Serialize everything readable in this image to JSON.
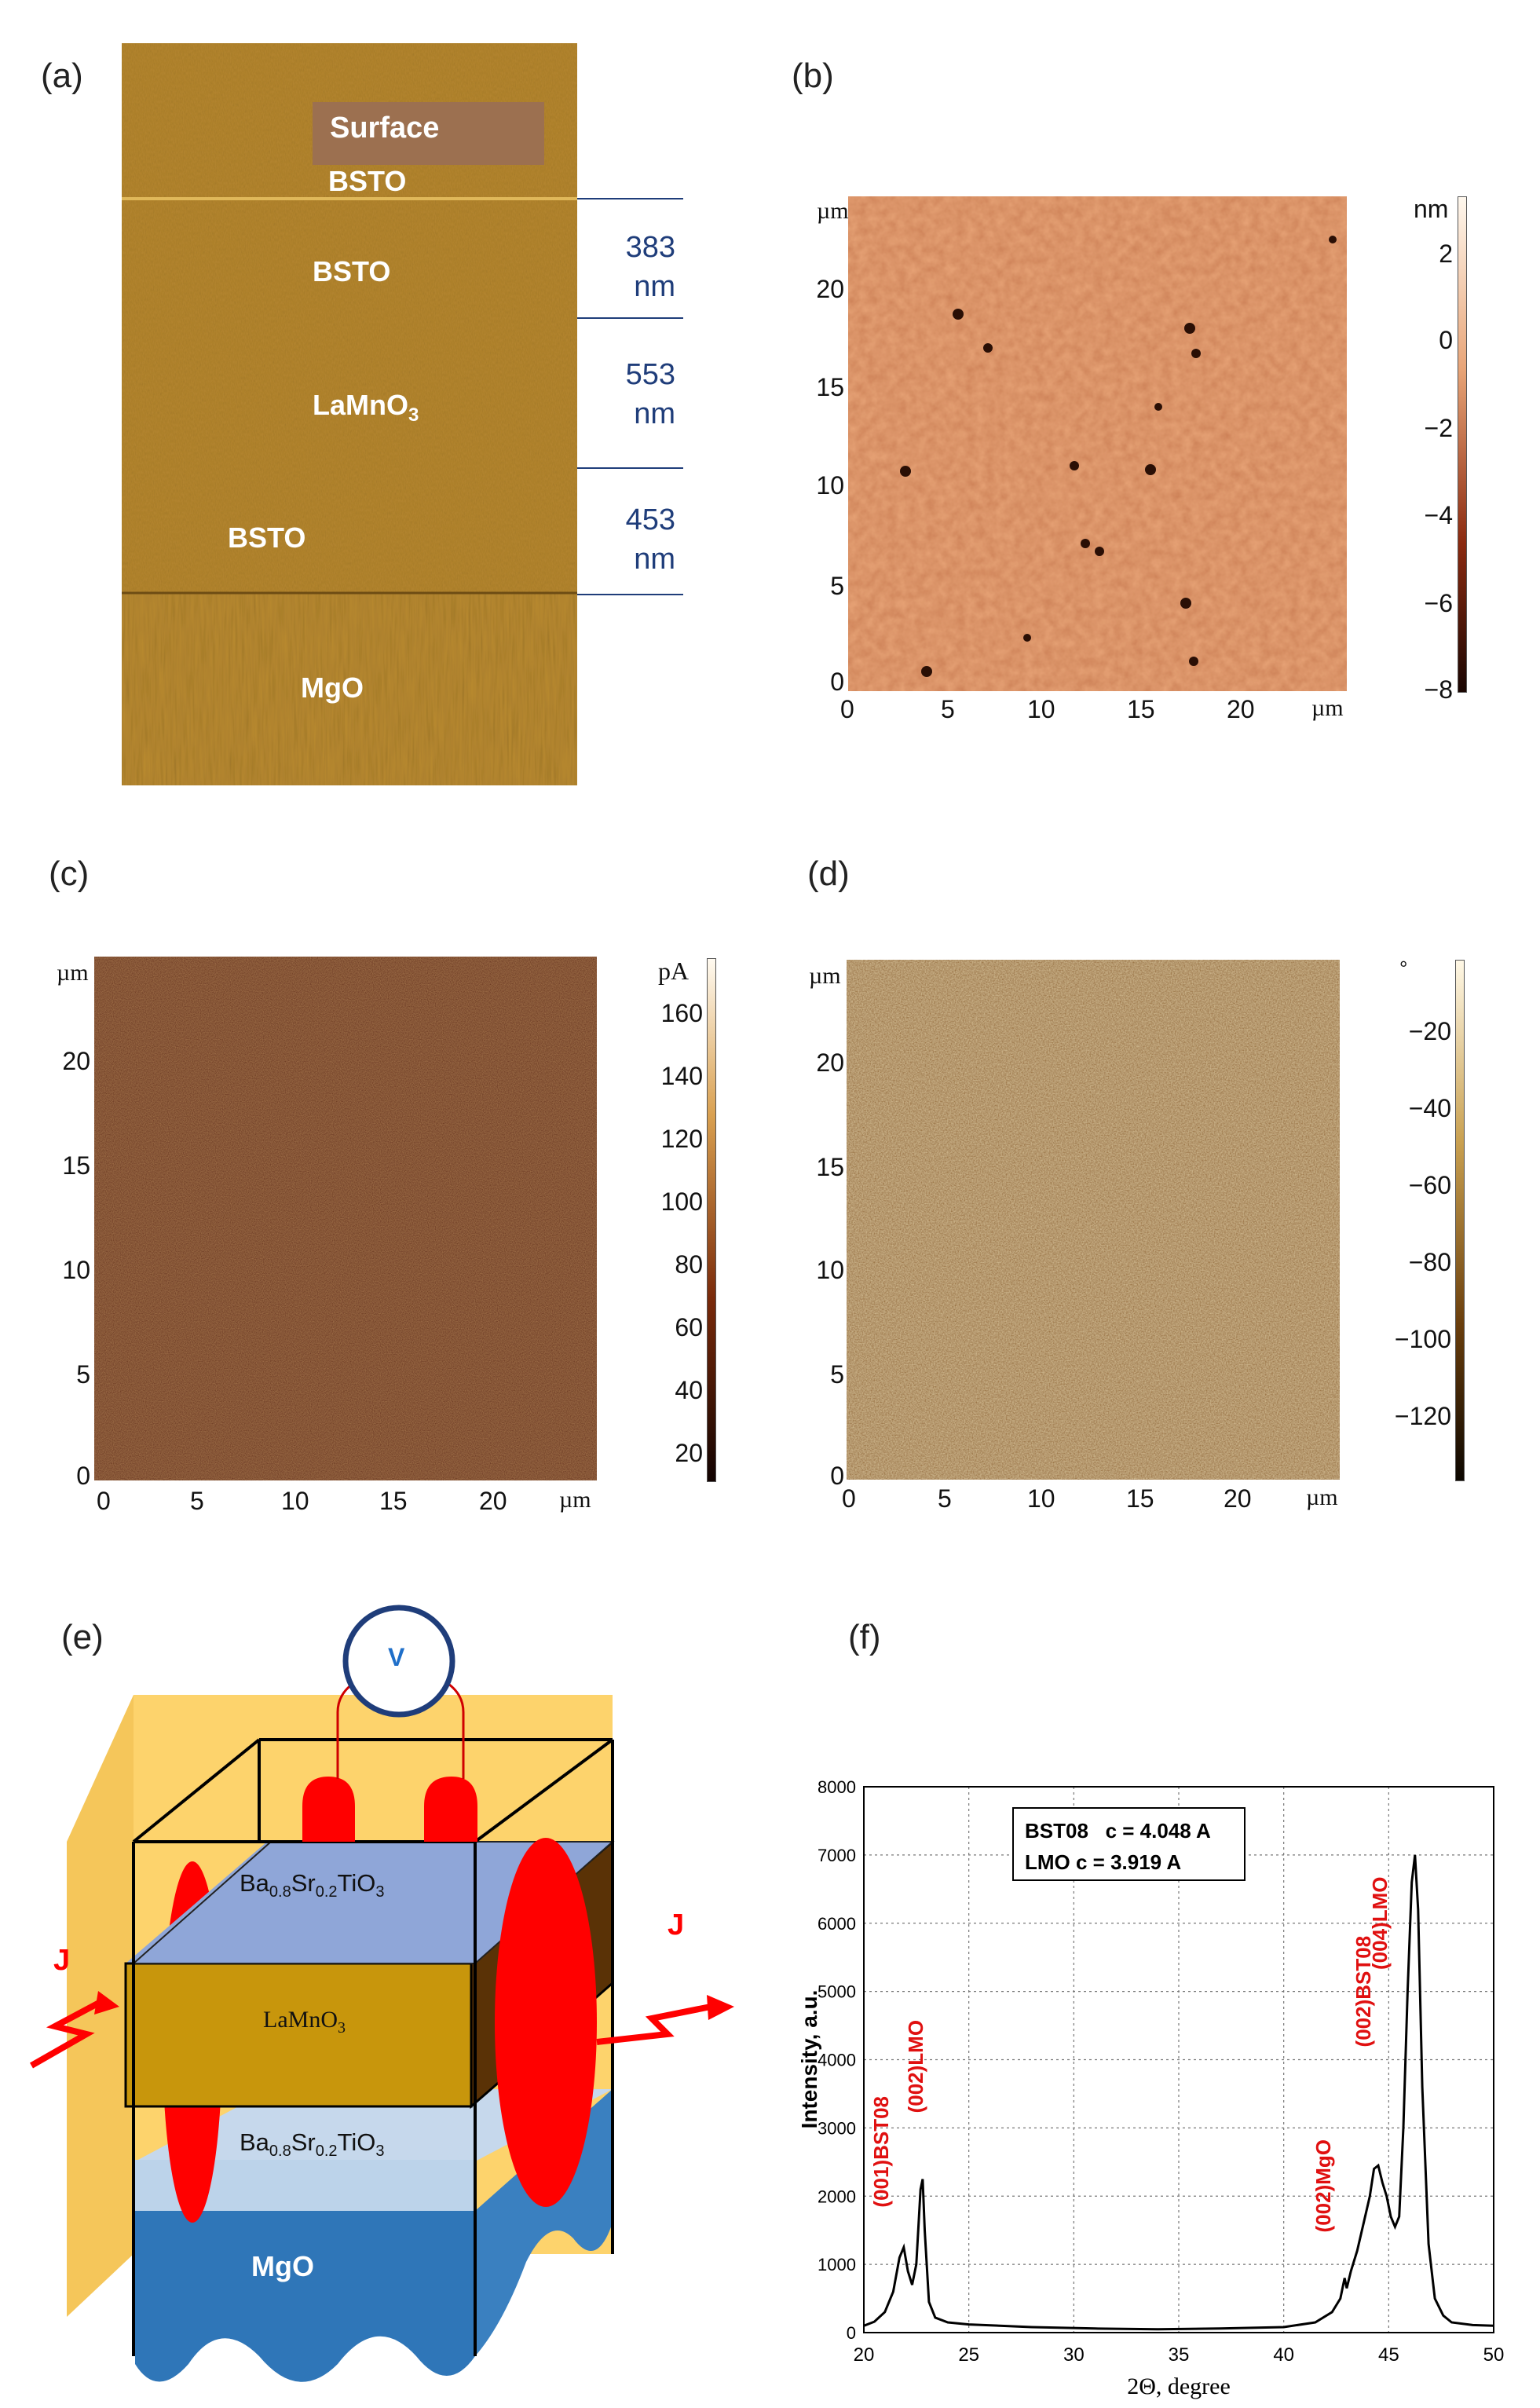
{
  "panels": {
    "a": {
      "letter": "(a)",
      "layers": {
        "surface": "Surface",
        "bsto_top": "BSTO",
        "bsto_mid": "BSTO",
        "lamno": "LaMnO",
        "lamno_sub": "3",
        "bsto_bottom": "BSTO",
        "mgo": "MgO"
      },
      "thickness": [
        {
          "value": "383",
          "unit": "nm"
        },
        {
          "value": "553",
          "unit": "nm"
        },
        {
          "value": "453",
          "unit": "nm"
        }
      ]
    },
    "b": {
      "letter": "(b)",
      "axis_unit": "µm",
      "y_ticks": [
        "20",
        "15",
        "10",
        "5",
        "0"
      ],
      "x_ticks": [
        "0",
        "5",
        "10",
        "15",
        "20"
      ],
      "colorbar_unit": "nm",
      "colorbar_ticks": [
        "2",
        "0",
        "−2",
        "−4",
        "−6",
        "−8"
      ]
    },
    "c": {
      "letter": "(c)",
      "axis_unit": "µm",
      "y_ticks": [
        "20",
        "15",
        "10",
        "5",
        "0"
      ],
      "x_ticks": [
        "0",
        "5",
        "10",
        "15",
        "20"
      ],
      "colorbar_unit": "pA",
      "colorbar_ticks": [
        "160",
        "140",
        "120",
        "100",
        "80",
        "60",
        "40",
        "20"
      ]
    },
    "d": {
      "letter": "(d)",
      "axis_unit": "µm",
      "y_ticks": [
        "20",
        "15",
        "10",
        "5",
        "0"
      ],
      "x_ticks": [
        "0",
        "5",
        "10",
        "15",
        "20"
      ],
      "colorbar_unit": "°",
      "colorbar_ticks": [
        "−20",
        "−40",
        "−60",
        "−80",
        "−100",
        "−120"
      ]
    },
    "e": {
      "letter": "(e)",
      "voltmeter": "V",
      "current_label": "J",
      "layer_top": {
        "base": "Ba",
        "s1": "0.8",
        "mid": "Sr",
        "s2": "0.2",
        "end": "TiO",
        "s3": "3"
      },
      "layer_mid": {
        "base": "LaMnO",
        "s1": "3"
      },
      "layer_bottom": {
        "base": "Ba",
        "s1": "0.8",
        "mid": "Sr",
        "s2": "0.2",
        "end": "TiO",
        "s3": "3"
      },
      "substrate": "MgO"
    },
    "f": {
      "letter": "(f)",
      "legend_line1": "BST08   c = 4.048 A",
      "legend_line2": "LMO c = 3.919 A",
      "peak_labels": [
        "(001)BST08",
        "(002)LMO",
        "(002)MgO",
        "(002)BST08",
        "(004)LMO"
      ]
    }
  },
  "chart_data": {
    "type": "line",
    "xlabel": "2Θ, degree",
    "ylabel": "Intensity, a.u.",
    "xlim": [
      20,
      50
    ],
    "ylim": [
      0,
      8000
    ],
    "x_ticks": [
      "20",
      "25",
      "30",
      "35",
      "40",
      "45",
      "50"
    ],
    "y_ticks": [
      "0",
      "1000",
      "2000",
      "3000",
      "4000",
      "5000",
      "6000",
      "7000",
      "8000"
    ],
    "grid": true,
    "series": [
      {
        "x": [
          20,
          20.5,
          21,
          21.4,
          21.7,
          21.9,
          22.1,
          22.3,
          22.5,
          22.7,
          22.8,
          22.9,
          23.1,
          23.4,
          24,
          25,
          28,
          31,
          34,
          37,
          40,
          41.5,
          42.3,
          42.7,
          42.9,
          43.0,
          43.2,
          43.5,
          43.8,
          44.1,
          44.3,
          44.5,
          44.7,
          44.9,
          45.1,
          45.3,
          45.5,
          45.7,
          45.9,
          46.1,
          46.25,
          46.4,
          46.6,
          46.9,
          47.2,
          47.6,
          48,
          49,
          50
        ],
        "y": [
          100,
          160,
          300,
          600,
          1100,
          1250,
          900,
          700,
          1000,
          2100,
          2250,
          1500,
          450,
          220,
          150,
          120,
          80,
          60,
          50,
          60,
          80,
          150,
          300,
          500,
          800,
          650,
          900,
          1200,
          1600,
          2000,
          2400,
          2450,
          2200,
          2000,
          1700,
          1550,
          1700,
          3000,
          5000,
          6600,
          7000,
          6200,
          3600,
          1300,
          500,
          250,
          150,
          110,
          100
        ]
      }
    ],
    "peak_positions": [
      21.9,
      22.8,
      42.9,
      44.5,
      46.25
    ]
  }
}
